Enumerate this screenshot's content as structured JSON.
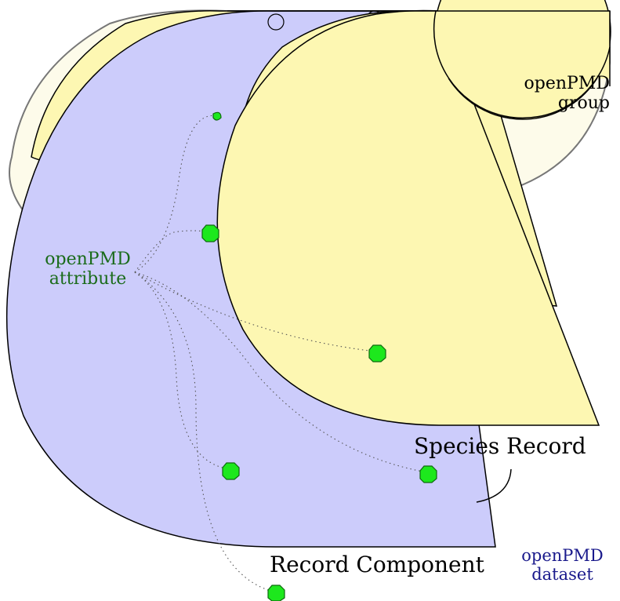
{
  "labels": {
    "attribute_line1": "openPMD",
    "attribute_line2": "attribute",
    "group_line1": "openPMD",
    "group_line2": "group",
    "species_record": "Species Record",
    "record_component": "Record Component",
    "dataset_line1": "openPMD",
    "dataset_line2": "dataset"
  },
  "colors": {
    "group_fill": "#fdfbea",
    "record_fill": "#fdf7b2",
    "species_fill": "#ccccfb",
    "attribute_marker": "#1de81d",
    "attribute_text": "#1a6b1a",
    "dataset_text": "#1a1a8c"
  }
}
